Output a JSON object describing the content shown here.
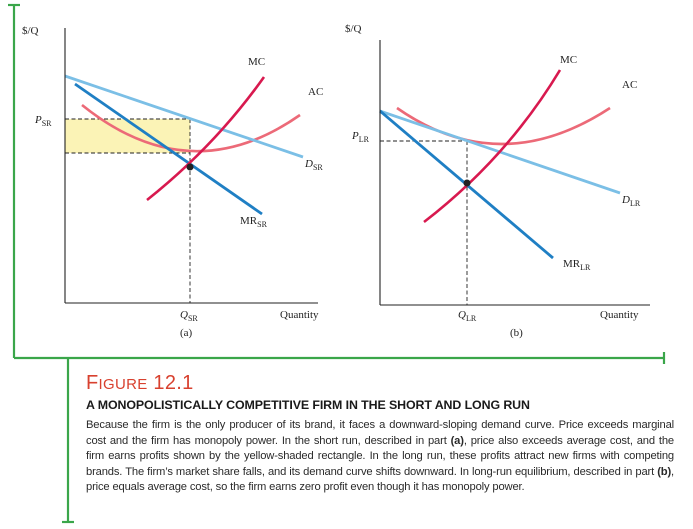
{
  "panel_a": {
    "y_axis_label": "$/Q",
    "x_axis_label": "Quantity",
    "price_label": {
      "main": "P",
      "sub": "SR"
    },
    "quantity_label": {
      "main": "Q",
      "sub": "SR"
    },
    "mc_label": "MC",
    "ac_label": "AC",
    "demand_label": {
      "main": "D",
      "sub": "SR"
    },
    "mr_label": {
      "main": "MR",
      "sub": "SR"
    },
    "panel_tag": "(a)"
  },
  "panel_b": {
    "y_axis_label": "$/Q",
    "x_axis_label": "Quantity",
    "price_label": {
      "main": "P",
      "sub": "LR"
    },
    "quantity_label": {
      "main": "Q",
      "sub": "LR"
    },
    "mc_label": "MC",
    "ac_label": "AC",
    "demand_label": {
      "main": "D",
      "sub": "LR"
    },
    "mr_label": {
      "main": "MR",
      "sub": "LR"
    },
    "panel_tag": "(b)"
  },
  "colors": {
    "frame": "#3aa64a",
    "mc_ac": "#d8194f",
    "ac": "#ec6a78",
    "demand": "#7bbfe6",
    "mr": "#1f7fc4",
    "profit_fill": "#fbf3b6",
    "caption_label": "#d8412f"
  },
  "caption": {
    "figure_word_first": "F",
    "figure_word_rest": "IGURE",
    "figure_number": "12.1",
    "title": "A MONOPOLISTICALLY COMPETITIVE FIRM IN THE SHORT AND LONG RUN",
    "body_1": "Because the firm is the only producer of its brand, it faces a downward-sloping demand curve. Price exceeds marginal cost and the firm has monopoly power. In the short run, described in part ",
    "body_bold_a": "(a)",
    "body_2": ", price also exceeds average cost, and the firm earns profits shown by the yellow-shaded rectangle. In the long run, these profits attract new firms with competing brands. The firm’s market share falls, and its demand curve shifts downward. In long-run equilibrium, described in part ",
    "body_bold_b": "(b)",
    "body_3": ", price equals average cost, so the firm earns zero profit even though it has monopoly power."
  }
}
